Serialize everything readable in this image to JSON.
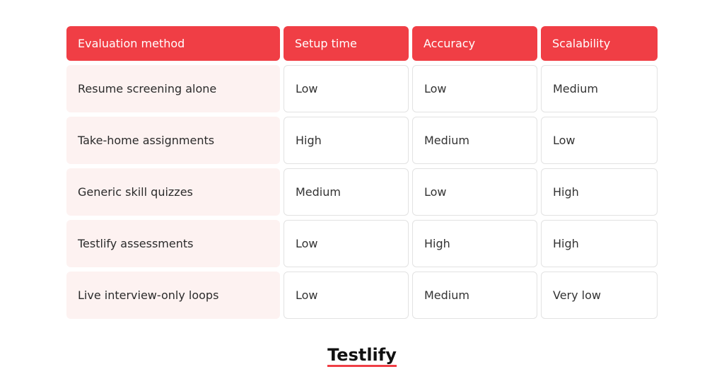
{
  "table": {
    "header": [
      "Evaluation method",
      "Setup time",
      "Accuracy",
      "Scalability"
    ],
    "rows": [
      [
        "Resume screening alone",
        "Low",
        "Low",
        "Medium"
      ],
      [
        "Take-home assignments",
        "High",
        "Medium",
        "Low"
      ],
      [
        "Generic skill quizzes",
        "Medium",
        "Low",
        "High"
      ],
      [
        "Testlify assessments",
        "Low",
        "High",
        "High"
      ],
      [
        "Live interview-only loops",
        "Low",
        "Medium",
        "Very low"
      ]
    ]
  },
  "footer": {
    "logo": "Testlify"
  }
}
